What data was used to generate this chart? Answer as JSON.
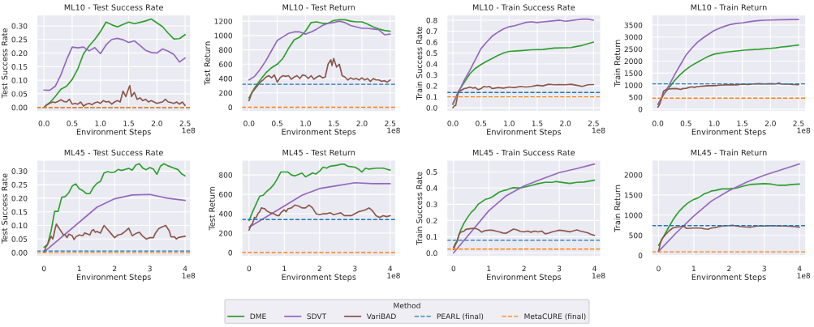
{
  "chart_data": [
    {
      "type": "line",
      "title": "ML10 - Test Success Rate",
      "xlabel": "Environment Steps",
      "ylabel": "Test Success Rate",
      "annotations": [
        "1e8"
      ],
      "grid": true,
      "legend": "bottom",
      "legend_title": "Method",
      "xlim": [
        -0.13,
        2.6
      ],
      "xticks": [
        {
          "value": 0,
          "label": "0.0"
        },
        {
          "value": 0.5,
          "label": "0.5"
        },
        {
          "value": 1,
          "label": "1.0"
        },
        {
          "value": 1.5,
          "label": "1.5"
        },
        {
          "value": 2,
          "label": "2.0"
        },
        {
          "value": 2.5,
          "label": "2.5"
        }
      ],
      "ylim": [
        -0.015,
        0.341
      ],
      "yticks": [
        {
          "value": 0,
          "label": "0.00"
        },
        {
          "value": 0.05,
          "label": "0.05"
        },
        {
          "value": 0.1,
          "label": "0.10"
        },
        {
          "value": 0.15,
          "label": "0.15"
        },
        {
          "value": 0.2,
          "label": "0.20"
        },
        {
          "value": 0.25,
          "label": "0.25"
        },
        {
          "value": 0.3,
          "label": "0.30"
        }
      ],
      "series": [
        {
          "name": "DME",
          "color": "#2ca02c",
          "x": [
            0,
            0.1,
            0.2,
            0.3,
            0.4,
            0.5,
            0.6,
            0.7,
            0.8,
            0.9,
            1.0,
            1.1,
            1.2,
            1.3,
            1.4,
            1.5,
            1.6,
            1.7,
            1.8,
            1.9,
            2.0,
            2.1,
            2.2,
            2.3,
            2.4,
            2.5
          ],
          "values": [
            0,
            0.017,
            0.04,
            0.067,
            0.078,
            0.103,
            0.142,
            0.197,
            0.226,
            0.25,
            0.279,
            0.314,
            0.304,
            0.296,
            0.305,
            0.314,
            0.308,
            0.313,
            0.318,
            0.325,
            0.311,
            0.297,
            0.273,
            0.252,
            0.253,
            0.268
          ]
        },
        {
          "name": "SDVT",
          "color": "#9467bd",
          "x": [
            0,
            0.1,
            0.2,
            0.3,
            0.4,
            0.5,
            0.6,
            0.7,
            0.8,
            0.9,
            1.0,
            1.1,
            1.2,
            1.3,
            1.4,
            1.5,
            1.6,
            1.7,
            1.8,
            1.9,
            2.0,
            2.1,
            2.2,
            2.3,
            2.4,
            2.5
          ],
          "values": [
            0.064,
            0.063,
            0.078,
            0.12,
            0.175,
            0.222,
            0.219,
            0.222,
            0.208,
            0.22,
            0.198,
            0.23,
            0.25,
            0.254,
            0.249,
            0.239,
            0.245,
            0.228,
            0.21,
            0.202,
            0.2,
            0.215,
            0.207,
            0.195,
            0.167,
            0.182
          ]
        },
        {
          "name": "VariBAD",
          "color": "#8c564b",
          "x": [
            0,
            0.05,
            0.1,
            0.15,
            0.2,
            0.25,
            0.3,
            0.35,
            0.4,
            0.45,
            0.5,
            0.55,
            0.6,
            0.65,
            0.7,
            0.75,
            0.8,
            0.85,
            0.9,
            0.95,
            1.0,
            1.05,
            1.1,
            1.15,
            1.2,
            1.25,
            1.3,
            1.35,
            1.4,
            1.45,
            1.5,
            1.52,
            1.55,
            1.6,
            1.65,
            1.7,
            1.75,
            1.8,
            1.85,
            1.9,
            1.95,
            2.0,
            2.05,
            2.1,
            2.15,
            2.2,
            2.25,
            2.3,
            2.35,
            2.4,
            2.45,
            2.5
          ],
          "values": [
            0,
            0.01,
            0.015,
            0.02,
            0.018,
            0.022,
            0.028,
            0.022,
            0.02,
            0.03,
            0.012,
            0.015,
            0.012,
            0.02,
            0.005,
            0.012,
            0.015,
            0.01,
            0.017,
            0.02,
            0.015,
            0.025,
            0.02,
            0.022,
            0.012,
            0.02,
            0.025,
            0.02,
            0.06,
            0.04,
            0.07,
            0.08,
            0.04,
            0.055,
            0.03,
            0.035,
            0.025,
            0.03,
            0.02,
            0.025,
            0.02,
            0.015,
            0.018,
            0.02,
            0.03,
            0.02,
            0.018,
            0.015,
            0.02,
            0.012,
            0.02,
            0.007
          ]
        }
      ],
      "ref_lines": [
        {
          "axis": "y",
          "value": 0,
          "label": "PEARL (final)",
          "color": "#1f77b4",
          "line_style": "dashed"
        },
        {
          "axis": "y",
          "value": 0,
          "label": "MetaCURE (final)",
          "color": "#ff7f0e",
          "line_style": "dashed"
        }
      ]
    },
    {
      "type": "line",
      "title": "ML10 - Test Return",
      "xlabel": "Environment Steps",
      "ylabel": "Test Return",
      "annotations": [
        "1e8"
      ],
      "grid": true,
      "xlim": [
        -0.13,
        2.6
      ],
      "xticks": [
        {
          "value": 0,
          "label": "0.0"
        },
        {
          "value": 0.5,
          "label": "0.5"
        },
        {
          "value": 1,
          "label": "1.0"
        },
        {
          "value": 1.5,
          "label": "1.5"
        },
        {
          "value": 2,
          "label": "2.0"
        },
        {
          "value": 2.5,
          "label": "2.5"
        }
      ],
      "ylim": [
        -60,
        1290
      ],
      "yticks": [
        0,
        200,
        400,
        600,
        800,
        1000,
        1200
      ],
      "series": [
        {
          "color": "#2ca02c",
          "x": [
            0,
            0.1,
            0.2,
            0.3,
            0.4,
            0.5,
            0.6,
            0.7,
            0.8,
            0.9,
            1.0,
            1.1,
            1.2,
            1.3,
            1.4,
            1.5,
            1.6,
            1.7,
            1.8,
            1.9,
            2.0,
            2.1,
            2.2,
            2.3,
            2.4,
            2.5
          ],
          "values": [
            130,
            270,
            380,
            480,
            550,
            600,
            680,
            820,
            940,
            980,
            1060,
            1180,
            1190,
            1170,
            1170,
            1210,
            1220,
            1220,
            1200,
            1190,
            1190,
            1160,
            1120,
            1090,
            1070,
            1060
          ]
        },
        {
          "color": "#9467bd",
          "x": [
            0,
            0.1,
            0.2,
            0.3,
            0.4,
            0.5,
            0.6,
            0.7,
            0.8,
            0.9,
            1.0,
            1.1,
            1.2,
            1.3,
            1.4,
            1.5,
            1.6,
            1.7,
            1.8,
            1.9,
            2.0,
            2.1,
            2.2,
            2.3,
            2.4,
            2.5
          ],
          "values": [
            380,
            430,
            530,
            650,
            790,
            930,
            980,
            1030,
            1050,
            1050,
            1020,
            1050,
            1090,
            1140,
            1170,
            1180,
            1200,
            1180,
            1140,
            1120,
            1100,
            1100,
            1090,
            1080,
            1010,
            1020
          ]
        },
        {
          "color": "#8c564b",
          "x": [
            0,
            0.05,
            0.1,
            0.15,
            0.2,
            0.25,
            0.3,
            0.35,
            0.4,
            0.45,
            0.5,
            0.55,
            0.6,
            0.65,
            0.7,
            0.75,
            0.8,
            0.85,
            0.9,
            0.95,
            1.0,
            1.05,
            1.1,
            1.15,
            1.2,
            1.25,
            1.3,
            1.35,
            1.4,
            1.45,
            1.47,
            1.5,
            1.55,
            1.6,
            1.65,
            1.7,
            1.75,
            1.8,
            1.85,
            1.9,
            1.95,
            2.0,
            2.05,
            2.1,
            2.15,
            2.2,
            2.25,
            2.3,
            2.35,
            2.4,
            2.45,
            2.5
          ],
          "values": [
            90,
            200,
            250,
            300,
            350,
            380,
            420,
            440,
            410,
            450,
            350,
            410,
            440,
            430,
            440,
            390,
            420,
            440,
            400,
            450,
            440,
            400,
            440,
            390,
            420,
            440,
            410,
            420,
            600,
            660,
            580,
            680,
            560,
            600,
            440,
            420,
            380,
            410,
            390,
            400,
            380,
            410,
            380,
            400,
            360,
            400,
            380,
            380,
            360,
            370,
            350,
            380
          ]
        }
      ],
      "ref_lines": [
        {
          "axis": "y",
          "value": 320,
          "color": "#1f77b4",
          "line_style": "dashed"
        },
        {
          "axis": "y",
          "value": 0,
          "color": "#ff7f0e",
          "line_style": "dashed"
        }
      ]
    },
    {
      "type": "line",
      "title": "ML10 - Train Success Rate",
      "xlabel": "Environment Steps",
      "ylabel": "Train Success Rate",
      "annotations": [
        "1e8"
      ],
      "grid": true,
      "xlim": [
        -0.11,
        2.63
      ],
      "xticks": [
        {
          "value": 0,
          "label": "0.0"
        },
        {
          "value": 0.5,
          "label": "0.5"
        },
        {
          "value": 1,
          "label": "1.0"
        },
        {
          "value": 1.5,
          "label": "1.5"
        },
        {
          "value": 2,
          "label": "2.0"
        },
        {
          "value": 2.5,
          "label": "2.5"
        }
      ],
      "ylim": [
        -0.034,
        0.85
      ],
      "yticks": [
        {
          "value": 0,
          "label": "0.0"
        },
        0.1,
        0.2,
        0.3,
        0.4,
        0.5,
        0.6,
        0.7,
        0.8
      ],
      "series": [
        {
          "color": "#2ca02c",
          "x": [
            0,
            0.1,
            0.2,
            0.3,
            0.4,
            0.5,
            0.6,
            0.7,
            0.8,
            0.9,
            1.0,
            1.2,
            1.4,
            1.6,
            1.8,
            2.0,
            2.1,
            2.2,
            2.3,
            2.4,
            2.5
          ],
          "values": [
            0.03,
            0.15,
            0.23,
            0.31,
            0.36,
            0.395,
            0.425,
            0.45,
            0.478,
            0.5,
            0.515,
            0.522,
            0.53,
            0.533,
            0.545,
            0.548,
            0.55,
            0.56,
            0.57,
            0.585,
            0.6
          ]
        },
        {
          "color": "#9467bd",
          "x": [
            0,
            0.1,
            0.2,
            0.3,
            0.4,
            0.5,
            0.6,
            0.7,
            0.8,
            0.9,
            1.0,
            1.1,
            1.2,
            1.3,
            1.4,
            1.5,
            1.6,
            1.7,
            1.8,
            1.9,
            2.0,
            2.1,
            2.2,
            2.3,
            2.4,
            2.5
          ],
          "values": [
            0.04,
            0.14,
            0.25,
            0.34,
            0.44,
            0.54,
            0.6,
            0.655,
            0.69,
            0.72,
            0.74,
            0.75,
            0.765,
            0.78,
            0.785,
            0.778,
            0.785,
            0.79,
            0.795,
            0.8,
            0.79,
            0.797,
            0.803,
            0.81,
            0.81,
            0.8
          ]
        },
        {
          "color": "#8c564b",
          "x": [
            0,
            0.03,
            0.05,
            0.08,
            0.1,
            0.15,
            0.2,
            0.25,
            0.3,
            0.35,
            0.4,
            0.45,
            0.5,
            0.55,
            0.6,
            0.65,
            0.7,
            0.75,
            0.8,
            0.9,
            1.0,
            1.1,
            1.2,
            1.3,
            1.4,
            1.5,
            1.6,
            1.7,
            1.8,
            1.9,
            2.0,
            2.1,
            2.2,
            2.3,
            2.4,
            2.5
          ],
          "values": [
            0,
            0.02,
            0.02,
            0.1,
            0.15,
            0.16,
            0.175,
            0.18,
            0.19,
            0.18,
            0.185,
            0.165,
            0.175,
            0.195,
            0.19,
            0.195,
            0.175,
            0.18,
            0.185,
            0.18,
            0.19,
            0.185,
            0.195,
            0.19,
            0.195,
            0.205,
            0.2,
            0.215,
            0.21,
            0.212,
            0.21,
            0.215,
            0.205,
            0.195,
            0.21,
            0.212
          ]
        }
      ],
      "ref_lines": [
        {
          "axis": "y",
          "value": 0.14,
          "color": "#1f77b4",
          "line_style": "dashed"
        },
        {
          "axis": "y",
          "value": 0.1,
          "color": "#ff7f0e",
          "line_style": "dashed"
        }
      ]
    },
    {
      "type": "line",
      "title": "ML10 - Train Return",
      "xlabel": "Environment Steps",
      "ylabel": "Train Return",
      "annotations": [
        "1e8"
      ],
      "grid": true,
      "xlim": [
        -0.11,
        2.63
      ],
      "xticks": [
        {
          "value": 0,
          "label": "0.0"
        },
        {
          "value": 0.5,
          "label": "0.5"
        },
        {
          "value": 1,
          "label": "1.0"
        },
        {
          "value": 1.5,
          "label": "1.5"
        },
        {
          "value": 2,
          "label": "2.0"
        },
        {
          "value": 2.5,
          "label": "2.5"
        }
      ],
      "ylim": [
        -96,
        3930
      ],
      "yticks": [
        0,
        500,
        1000,
        1500,
        2000,
        2500,
        3000,
        3500
      ],
      "series": [
        {
          "color": "#2ca02c",
          "x": [
            0,
            0.1,
            0.2,
            0.3,
            0.4,
            0.5,
            0.6,
            0.7,
            0.8,
            0.9,
            1.0,
            1.2,
            1.4,
            1.6,
            1.8,
            2.0,
            2.1,
            2.2,
            2.3,
            2.4,
            2.5
          ],
          "values": [
            200,
            600,
            900,
            1200,
            1450,
            1650,
            1820,
            1950,
            2080,
            2200,
            2290,
            2370,
            2420,
            2470,
            2490,
            2530,
            2550,
            2590,
            2610,
            2640,
            2670
          ]
        },
        {
          "color": "#9467bd",
          "x": [
            0,
            0.1,
            0.2,
            0.3,
            0.4,
            0.5,
            0.6,
            0.7,
            0.8,
            0.9,
            1.0,
            1.1,
            1.2,
            1.3,
            1.4,
            1.5,
            1.6,
            1.7,
            1.8,
            1.9,
            2.0,
            2.2,
            2.4,
            2.5
          ],
          "values": [
            200,
            600,
            1000,
            1450,
            1850,
            2250,
            2530,
            2780,
            2960,
            3120,
            3270,
            3370,
            3460,
            3530,
            3570,
            3590,
            3630,
            3660,
            3690,
            3700,
            3710,
            3720,
            3730,
            3730
          ]
        },
        {
          "color": "#8c564b",
          "x": [
            0,
            0.03,
            0.06,
            0.1,
            0.15,
            0.2,
            0.25,
            0.3,
            0.35,
            0.4,
            0.45,
            0.5,
            0.55,
            0.6,
            0.65,
            0.7,
            0.8,
            0.9,
            1.0,
            1.1,
            1.2,
            1.3,
            1.4,
            1.5,
            1.6,
            1.7,
            1.8,
            1.9,
            2.0,
            2.1,
            2.15,
            2.2,
            2.3,
            2.4,
            2.5
          ],
          "values": [
            80,
            200,
            400,
            750,
            820,
            840,
            850,
            860,
            850,
            820,
            860,
            870,
            900,
            930,
            910,
            940,
            960,
            980,
            980,
            1000,
            1010,
            1020,
            1010,
            1040,
            1030,
            1050,
            1060,
            1050,
            1060,
            1050,
            1090,
            1040,
            1050,
            1030,
            1020
          ]
        }
      ],
      "ref_lines": [
        {
          "axis": "y",
          "value": 1055,
          "color": "#1f77b4",
          "line_style": "dashed"
        },
        {
          "axis": "y",
          "value": 460,
          "color": "#ff7f0e",
          "line_style": "dashed"
        }
      ]
    },
    {
      "type": "line",
      "title": "ML45 - Test Success Rate",
      "xlabel": "Environment Steps",
      "ylabel": "Test Success Rate",
      "annotations": [
        "1e8"
      ],
      "grid": true,
      "xlim": [
        -0.21,
        4.16
      ],
      "xticks": [
        0,
        1,
        2,
        3,
        4
      ],
      "ylim": [
        -0.015,
        0.341
      ],
      "yticks": [
        {
          "value": 0,
          "label": "0.00"
        },
        {
          "value": 0.05,
          "label": "0.05"
        },
        {
          "value": 0.1,
          "label": "0.10"
        },
        {
          "value": 0.15,
          "label": "0.15"
        },
        {
          "value": 0.2,
          "label": "0.20"
        },
        {
          "value": 0.25,
          "label": "0.25"
        },
        {
          "value": 0.3,
          "label": "0.30"
        }
      ],
      "series": [
        {
          "color": "#2ca02c",
          "x": [
            0,
            0.1,
            0.2,
            0.3,
            0.4,
            0.5,
            0.6,
            0.7,
            0.8,
            0.9,
            1.0,
            1.1,
            1.2,
            1.3,
            1.4,
            1.5,
            1.6,
            1.7,
            1.8,
            1.9,
            2.0,
            2.1,
            2.2,
            2.4,
            2.5,
            2.6,
            2.7,
            2.8,
            2.9,
            3.0,
            3.1,
            3.2,
            3.3,
            3.4,
            3.5,
            3.7,
            3.8,
            3.9,
            4.0
          ],
          "values": [
            0.02,
            0.03,
            0.08,
            0.152,
            0.152,
            0.203,
            0.206,
            0.22,
            0.245,
            0.253,
            0.235,
            0.228,
            0.217,
            0.217,
            0.24,
            0.255,
            0.262,
            0.293,
            0.298,
            0.295,
            0.296,
            0.306,
            0.302,
            0.31,
            0.303,
            0.322,
            0.327,
            0.311,
            0.305,
            0.313,
            0.307,
            0.288,
            0.318,
            0.327,
            0.32,
            0.31,
            0.305,
            0.29,
            0.282
          ]
        },
        {
          "color": "#9467bd",
          "x": [
            0,
            1.5,
            2.0,
            2.5,
            3.0,
            3.5,
            4.0
          ],
          "values": [
            0.002,
            0.167,
            0.198,
            0.212,
            0.214,
            0.2,
            0.192
          ]
        },
        {
          "color": "#8c564b",
          "x": [
            0,
            0.05,
            0.1,
            0.15,
            0.2,
            0.25,
            0.3,
            0.35,
            0.4,
            0.5,
            0.55,
            0.6,
            0.65,
            0.7,
            0.8,
            0.85,
            0.9,
            1.0,
            1.1,
            1.15,
            1.2,
            1.3,
            1.35,
            1.4,
            1.45,
            1.5,
            1.6,
            1.7,
            1.8,
            1.9,
            2.0,
            2.1,
            2.2,
            2.3,
            2.4,
            2.5,
            2.6,
            2.7,
            2.8,
            2.9,
            3.0,
            3.1,
            3.15,
            3.25,
            3.35,
            3.45,
            3.55,
            3.6,
            3.7,
            3.75,
            3.8,
            3.9,
            4.0
          ],
          "values": [
            0,
            0.02,
            0.03,
            0.045,
            0.06,
            0.05,
            0.08,
            0.105,
            0.095,
            0.075,
            0.065,
            0.065,
            0.055,
            0.068,
            0.062,
            0.048,
            0.058,
            0.065,
            0.062,
            0.072,
            0.07,
            0.065,
            0.08,
            0.085,
            0.075,
            0.078,
            0.072,
            0.1,
            0.085,
            0.07,
            0.055,
            0.065,
            0.068,
            0.078,
            0.09,
            0.062,
            0.07,
            0.075,
            0.06,
            0.05,
            0.055,
            0.055,
            0.07,
            0.088,
            0.095,
            0.1,
            0.08,
            0.058,
            0.058,
            0.05,
            0.055,
            0.058,
            0.06
          ]
        }
      ],
      "ref_lines": [
        {
          "axis": "y",
          "value": 0.006,
          "color": "#1f77b4",
          "line_style": "dashed"
        },
        {
          "axis": "y",
          "value": 0,
          "color": "#ff7f0e",
          "line_style": "dashed"
        }
      ]
    },
    {
      "type": "line",
      "title": "ML45 - Test Return",
      "xlabel": "Environment Steps",
      "ylabel": "Test Return",
      "annotations": [
        "1e8"
      ],
      "grid": true,
      "xlim": [
        -0.21,
        4.16
      ],
      "xticks": [
        0,
        1,
        2,
        3,
        4
      ],
      "ylim": [
        -43,
        955
      ],
      "yticks": [
        0,
        200,
        400,
        600,
        800
      ],
      "series": [
        {
          "color": "#2ca02c",
          "x": [
            0,
            0.1,
            0.2,
            0.3,
            0.4,
            0.5,
            0.6,
            0.7,
            0.8,
            0.9,
            1.0,
            1.1,
            1.2,
            1.3,
            1.5,
            1.6,
            1.8,
            1.9,
            2.0,
            2.1,
            2.2,
            2.3,
            2.5,
            2.6,
            2.7,
            2.8,
            3.0,
            3.1,
            3.2,
            3.3,
            3.4,
            3.6,
            3.8,
            3.9,
            4.0
          ],
          "values": [
            330,
            420,
            500,
            580,
            590,
            630,
            660,
            700,
            760,
            830,
            830,
            830,
            800,
            790,
            820,
            780,
            820,
            810,
            840,
            880,
            870,
            890,
            900,
            910,
            910,
            890,
            880,
            860,
            830,
            870,
            860,
            870,
            870,
            860,
            850
          ]
        },
        {
          "color": "#9467bd",
          "x": [
            0,
            1.0,
            1.5,
            2.0,
            2.5,
            3.0,
            3.5,
            4.0
          ],
          "values": [
            260,
            480,
            590,
            660,
            690,
            720,
            710,
            710
          ]
        },
        {
          "color": "#8c564b",
          "x": [
            0,
            0.05,
            0.1,
            0.15,
            0.2,
            0.25,
            0.3,
            0.35,
            0.45,
            0.5,
            0.6,
            0.7,
            0.8,
            0.85,
            0.9,
            1.0,
            1.05,
            1.1,
            1.2,
            1.3,
            1.4,
            1.5,
            1.6,
            1.7,
            1.8,
            1.9,
            2.0,
            2.1,
            2.2,
            2.3,
            2.4,
            2.5,
            2.6,
            2.7,
            2.8,
            2.9,
            3.0,
            3.1,
            3.2,
            3.3,
            3.4,
            3.5,
            3.6,
            3.7,
            3.8,
            3.9,
            4.0
          ],
          "values": [
            230,
            280,
            300,
            360,
            360,
            400,
            420,
            460,
            450,
            430,
            410,
            400,
            380,
            380,
            410,
            440,
            420,
            450,
            460,
            490,
            480,
            460,
            460,
            490,
            460,
            400,
            390,
            400,
            400,
            410,
            390,
            400,
            410,
            380,
            380,
            380,
            400,
            420,
            430,
            440,
            460,
            430,
            380,
            360,
            380,
            370,
            380
          ]
        }
      ],
      "ref_lines": [
        {
          "axis": "y",
          "value": 340,
          "color": "#1f77b4",
          "line_style": "dashed"
        },
        {
          "axis": "y",
          "value": 0,
          "color": "#ff7f0e",
          "line_style": "dashed"
        }
      ]
    },
    {
      "type": "line",
      "title": "ML45 - Train Success Rate",
      "xlabel": "Environment Steps",
      "ylabel": "Train Success Rate",
      "annotations": [
        "1e8"
      ],
      "grid": true,
      "xlim": [
        -0.195,
        4.18
      ],
      "xticks": [
        0,
        1,
        2,
        3,
        4
      ],
      "ylim": [
        -0.023,
        0.573
      ],
      "yticks": [
        {
          "value": 0,
          "label": "0.0"
        },
        0.1,
        0.2,
        0.3,
        0.4,
        0.5
      ],
      "series": [
        {
          "color": "#2ca02c",
          "x": [
            0,
            0.05,
            0.1,
            0.15,
            0.2,
            0.3,
            0.4,
            0.5,
            0.6,
            0.7,
            0.8,
            0.9,
            1.0,
            1.1,
            1.2,
            1.3,
            1.4,
            1.5,
            1.6,
            1.7,
            1.8,
            1.9,
            2.0,
            2.2,
            2.4,
            2.6,
            2.8,
            2.9,
            3.0,
            3.3,
            3.5,
            3.7,
            4.0
          ],
          "values": [
            0.035,
            0.06,
            0.07,
            0.11,
            0.14,
            0.185,
            0.22,
            0.25,
            0.27,
            0.3,
            0.315,
            0.33,
            0.335,
            0.345,
            0.36,
            0.375,
            0.383,
            0.388,
            0.396,
            0.402,
            0.401,
            0.4,
            0.405,
            0.415,
            0.427,
            0.435,
            0.435,
            0.44,
            0.437,
            0.428,
            0.435,
            0.437,
            0.448
          ]
        },
        {
          "color": "#9467bd",
          "x": [
            0,
            0.5,
            1.0,
            1.5,
            2.0,
            2.5,
            3.0,
            3.5,
            4.0
          ],
          "values": [
            0,
            0.13,
            0.26,
            0.353,
            0.413,
            0.455,
            0.495,
            0.52,
            0.548
          ]
        },
        {
          "color": "#8c564b",
          "x": [
            0,
            0.05,
            0.1,
            0.15,
            0.2,
            0.3,
            0.35,
            0.5,
            0.6,
            0.7,
            0.8,
            0.9,
            1.0,
            1.1,
            1.2,
            1.3,
            1.4,
            1.5,
            1.6,
            1.7,
            1.8,
            1.9,
            2.0,
            2.1,
            2.2,
            2.3,
            2.4,
            2.5,
            2.6,
            2.7,
            2.8,
            2.9,
            3.0,
            3.1,
            3.3,
            3.5,
            3.6,
            3.8,
            3.9,
            4.0
          ],
          "values": [
            0.02,
            0.05,
            0.07,
            0.11,
            0.128,
            0.135,
            0.145,
            0.15,
            0.152,
            0.145,
            0.128,
            0.138,
            0.14,
            0.14,
            0.135,
            0.13,
            0.123,
            0.122,
            0.135,
            0.147,
            0.142,
            0.132,
            0.13,
            0.135,
            0.128,
            0.135,
            0.13,
            0.135,
            0.118,
            0.122,
            0.13,
            0.135,
            0.14,
            0.138,
            0.13,
            0.142,
            0.135,
            0.125,
            0.115,
            0.108
          ]
        }
      ],
      "ref_lines": [
        {
          "axis": "y",
          "value": 0.078,
          "color": "#1f77b4",
          "line_style": "dashed"
        },
        {
          "axis": "y",
          "value": 0.024,
          "color": "#ff7f0e",
          "line_style": "dashed"
        }
      ]
    },
    {
      "type": "line",
      "title": "ML45 - Train Return",
      "xlabel": "Environment Steps",
      "ylabel": "Train Return",
      "annotations": [
        "1e8"
      ],
      "grid": true,
      "xlim": [
        -0.195,
        4.18
      ],
      "xticks": [
        0,
        1,
        2,
        3,
        4
      ],
      "ylim": [
        -30,
        2370
      ],
      "yticks": [
        0,
        500,
        1000,
        1500,
        2000
      ],
      "series": [
        {
          "color": "#2ca02c",
          "x": [
            0,
            0.1,
            0.2,
            0.3,
            0.4,
            0.5,
            0.6,
            0.7,
            0.8,
            0.9,
            1.0,
            1.1,
            1.2,
            1.3,
            1.4,
            1.5,
            1.6,
            1.7,
            1.8,
            2.0,
            2.2,
            2.4,
            2.6,
            2.8,
            3.0,
            3.2,
            3.4,
            3.6,
            3.8,
            4.0
          ],
          "values": [
            250,
            400,
            560,
            720,
            870,
            1000,
            1110,
            1200,
            1280,
            1340,
            1390,
            1420,
            1470,
            1530,
            1560,
            1600,
            1610,
            1630,
            1650,
            1650,
            1670,
            1720,
            1760,
            1770,
            1780,
            1770,
            1740,
            1740,
            1760,
            1770
          ]
        },
        {
          "color": "#9467bd",
          "x": [
            0,
            0.5,
            1.0,
            1.5,
            2.0,
            2.5,
            3.0,
            3.5,
            4.0
          ],
          "values": [
            100,
            560,
            980,
            1350,
            1610,
            1820,
            1990,
            2130,
            2270
          ]
        },
        {
          "color": "#8c564b",
          "x": [
            0,
            0.05,
            0.1,
            0.2,
            0.3,
            0.4,
            0.5,
            0.6,
            0.7,
            0.8,
            1.0,
            1.2,
            1.3,
            1.4,
            1.5,
            1.6,
            1.8,
            2.0,
            2.1,
            2.2,
            2.4,
            2.6,
            2.8,
            3.0,
            3.2,
            3.4,
            3.6,
            3.8,
            4.0
          ],
          "values": [
            100,
            300,
            420,
            520,
            610,
            680,
            700,
            710,
            730,
            670,
            680,
            680,
            660,
            650,
            680,
            690,
            730,
            740,
            750,
            730,
            710,
            700,
            730,
            730,
            740,
            730,
            730,
            720,
            700
          ]
        }
      ],
      "ref_lines": [
        {
          "axis": "y",
          "value": 740,
          "color": "#1f77b4",
          "line_style": "dashed"
        },
        {
          "axis": "y",
          "value": 90,
          "color": "#ff7f0e",
          "line_style": "dashed"
        }
      ]
    }
  ]
}
